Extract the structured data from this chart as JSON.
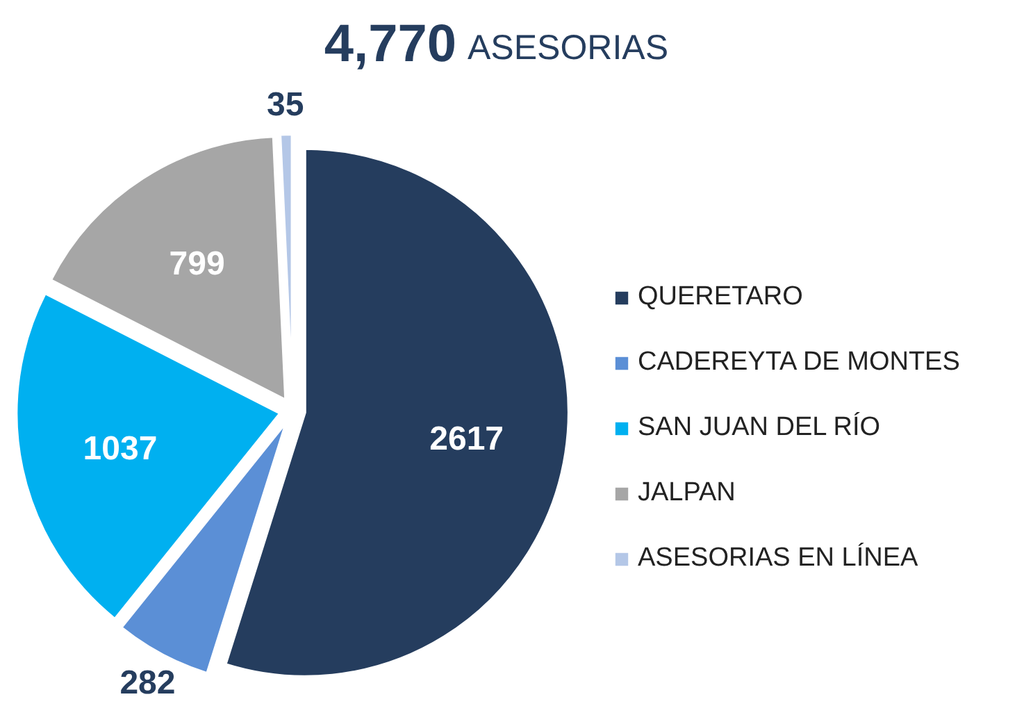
{
  "chart_data": {
    "type": "pie",
    "title": "4,770 ASESORIAS",
    "categories": [
      "QUERETARO",
      "CADEREYTA DE MONTES",
      "SAN JUAN DEL RÍO",
      "JALPAN",
      "ASESORIAS EN LÍNEA"
    ],
    "values": [
      2617,
      282,
      1037,
      799,
      35
    ],
    "colors": [
      "#253d5e",
      "#5b8fd6",
      "#00b0f0",
      "#a6a6a6",
      "#b4c7e7"
    ],
    "data_labels": true,
    "legend": "right"
  }
}
